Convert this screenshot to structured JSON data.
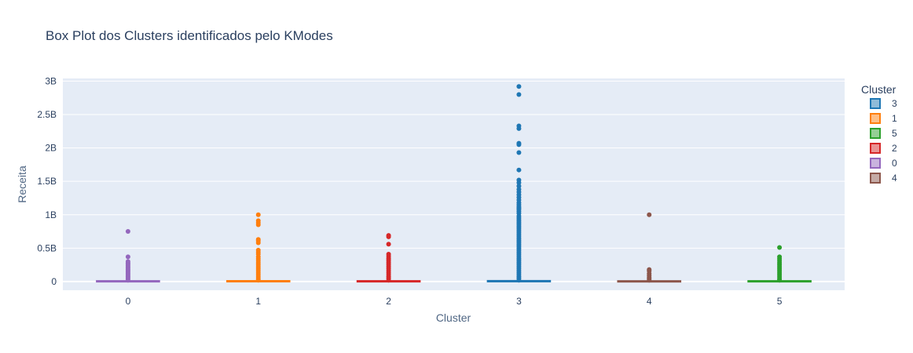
{
  "chart_data": {
    "type": "box",
    "title": "Box Plot dos Clusters identificados pelo KModes",
    "xlabel": "Cluster",
    "ylabel": "Receita",
    "ylim": [
      -0.13,
      3.04
    ],
    "y_unit": "B",
    "y_ticks": [
      0,
      0.5,
      1,
      1.5,
      2,
      2.5,
      3
    ],
    "y_tick_labels": [
      "0",
      "0.5B",
      "1B",
      "1.5B",
      "2B",
      "2.5B",
      "3B"
    ],
    "categories": [
      "0",
      "1",
      "2",
      "3",
      "4",
      "5"
    ],
    "grid": true,
    "legend": {
      "title": "Cluster",
      "position": "right"
    },
    "series": [
      {
        "name": "3",
        "x": "3",
        "color": "#1f77b4",
        "box": {
          "q1": 0,
          "median": 0.003,
          "q3": 0.006
        },
        "outliers": [
          2.92,
          2.8,
          2.33,
          2.29,
          2.07,
          2.05,
          1.93,
          1.67,
          1.52,
          1.48,
          1.43,
          1.38,
          1.34,
          1.3,
          1.26,
          1.22,
          1.18,
          1.15,
          1.12,
          1.1,
          1.08,
          1.05,
          1.02,
          0.98,
          0.95,
          0.92,
          0.89,
          0.86,
          0.83,
          0.8,
          0.77,
          0.74,
          0.71,
          0.68,
          0.65,
          0.62,
          0.59,
          0.56,
          0.53,
          0.5,
          0.47,
          0.44,
          0.41,
          0.38,
          0.35,
          0.32,
          0.29,
          0.26,
          0.23,
          0.2,
          0.17,
          0.14,
          0.11,
          0.08,
          0.05,
          0.02
        ]
      },
      {
        "name": "1",
        "x": "1",
        "color": "#ff7f0e",
        "box": {
          "q1": 0,
          "median": 0.002,
          "q3": 0.005
        },
        "outliers": [
          1.0,
          0.91,
          0.88,
          0.85,
          0.63,
          0.61,
          0.58,
          0.47,
          0.44,
          0.41,
          0.37,
          0.34,
          0.31,
          0.28,
          0.25,
          0.22,
          0.19,
          0.16,
          0.13,
          0.1,
          0.07,
          0.04,
          0.02
        ]
      },
      {
        "name": "5",
        "x": "5",
        "color": "#2ca02c",
        "box": {
          "q1": 0,
          "median": 0.002,
          "q3": 0.004
        },
        "outliers": [
          0.51,
          0.37,
          0.34,
          0.31,
          0.28,
          0.25,
          0.22,
          0.19,
          0.16,
          0.13,
          0.1,
          0.07,
          0.04,
          0.02
        ]
      },
      {
        "name": "2",
        "x": "2",
        "color": "#d62728",
        "box": {
          "q1": 0,
          "median": 0.002,
          "q3": 0.004
        },
        "outliers": [
          0.69,
          0.67,
          0.56,
          0.41,
          0.38,
          0.35,
          0.32,
          0.29,
          0.26,
          0.23,
          0.2,
          0.17,
          0.14,
          0.11,
          0.08,
          0.05,
          0.02
        ]
      },
      {
        "name": "0",
        "x": "0",
        "color": "#9467bd",
        "box": {
          "q1": 0,
          "median": 0.002,
          "q3": 0.004
        },
        "outliers": [
          0.75,
          0.37,
          0.3,
          0.28,
          0.26,
          0.24,
          0.22,
          0.2,
          0.18,
          0.16,
          0.14,
          0.12,
          0.1,
          0.08,
          0.06,
          0.04,
          0.02
        ]
      },
      {
        "name": "4",
        "x": "4",
        "color": "#8c564b",
        "box": {
          "q1": 0,
          "median": 0.001,
          "q3": 0.003
        },
        "outliers": [
          1.0,
          0.18,
          0.16,
          0.12,
          0.09,
          0.06,
          0.04,
          0.02
        ]
      }
    ]
  }
}
